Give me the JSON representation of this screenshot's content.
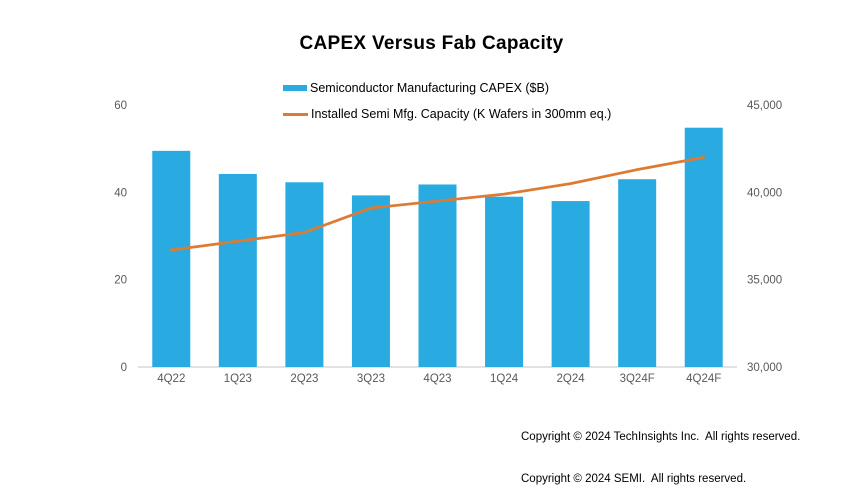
{
  "chart_data": {
    "type": "bar+line combo",
    "title": "CAPEX Versus Fab Capacity",
    "categories": [
      "4Q22",
      "1Q23",
      "2Q23",
      "3Q23",
      "4Q23",
      "1Q24",
      "2Q24",
      "3Q24F",
      "4Q24F"
    ],
    "series": [
      {
        "name": "Semiconductor Manufacturing CAPEX ($B)",
        "type": "bar",
        "axis": "left",
        "color": "#29ABE2",
        "values": [
          49.5,
          44.2,
          42.3,
          39.3,
          41.8,
          39,
          38,
          43,
          54.8
        ]
      },
      {
        "name": "Installed Semi Mfg. Capacity (K Wafers in 300mm eq.)",
        "type": "line",
        "axis": "right",
        "color": "#DD7B33",
        "values": [
          36700,
          37200,
          37700,
          39100,
          39500,
          39900,
          40500,
          41300,
          42000
        ]
      }
    ],
    "left_axis": {
      "min": 0,
      "max": 60,
      "ticks": [
        0,
        20,
        40,
        60
      ]
    },
    "right_axis": {
      "min": 30000,
      "max": 45000,
      "ticks": [
        30000,
        35000,
        40000,
        45000
      ]
    },
    "grid": false,
    "legend_position": "top-center",
    "axis_label_color": "#595959",
    "baseline_color": "#D9D9D9"
  },
  "footer": {
    "line1": "Copyright © 2024 TechInsights Inc.  All rights reserved.",
    "line2": "Copyright © 2024 SEMI.  All rights reserved."
  }
}
